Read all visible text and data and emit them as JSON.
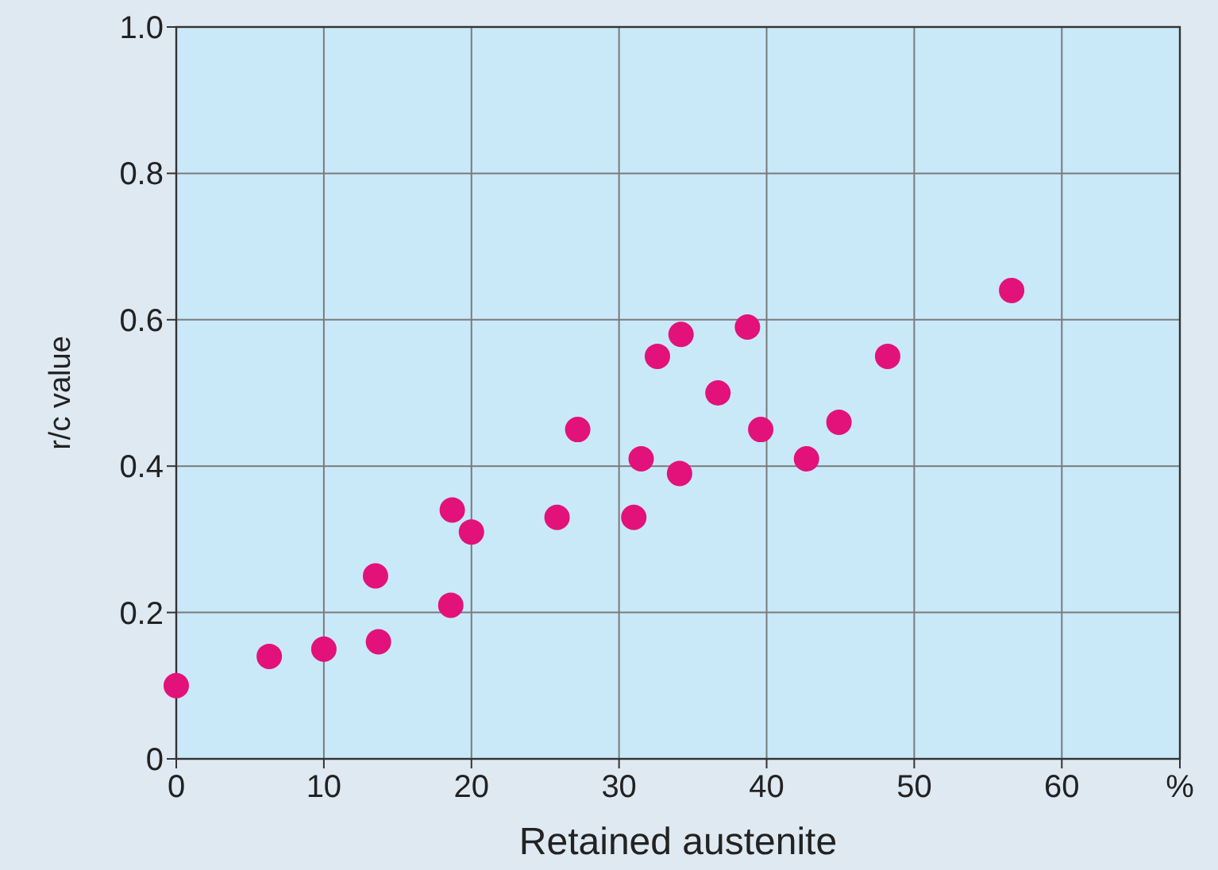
{
  "chart_data": {
    "type": "scatter",
    "xlabel": "Retained austenite",
    "ylabel": "r/c value",
    "x": [
      0,
      6.3,
      10,
      13.5,
      13.7,
      18.6,
      18.7,
      20,
      25.8,
      27.2,
      31,
      31.5,
      32.6,
      34.2,
      34.1,
      36.7,
      38.7,
      39.6,
      42.7,
      44.9,
      48.2,
      56.6
    ],
    "series": [
      {
        "color": "#e2127a",
        "values": [
          0.1,
          0.14,
          0.15,
          0.25,
          0.16,
          0.21,
          0.34,
          0.31,
          0.33,
          0.45,
          0.33,
          0.41,
          0.55,
          0.58,
          0.39,
          0.5,
          0.59,
          0.45,
          0.41,
          0.46,
          0.55,
          0.64
        ]
      }
    ],
    "xlim": [
      0,
      68
    ],
    "xticks": [
      0,
      10,
      20,
      30,
      40,
      50,
      60,
      {
        "value": 68,
        "label": "%"
      }
    ],
    "ylim": [
      0,
      1
    ],
    "yticks": [
      0,
      0.2,
      0.4,
      0.6,
      0.8,
      {
        "value": 1,
        "label": "1.0"
      }
    ],
    "grid": true,
    "marker": "circle"
  }
}
